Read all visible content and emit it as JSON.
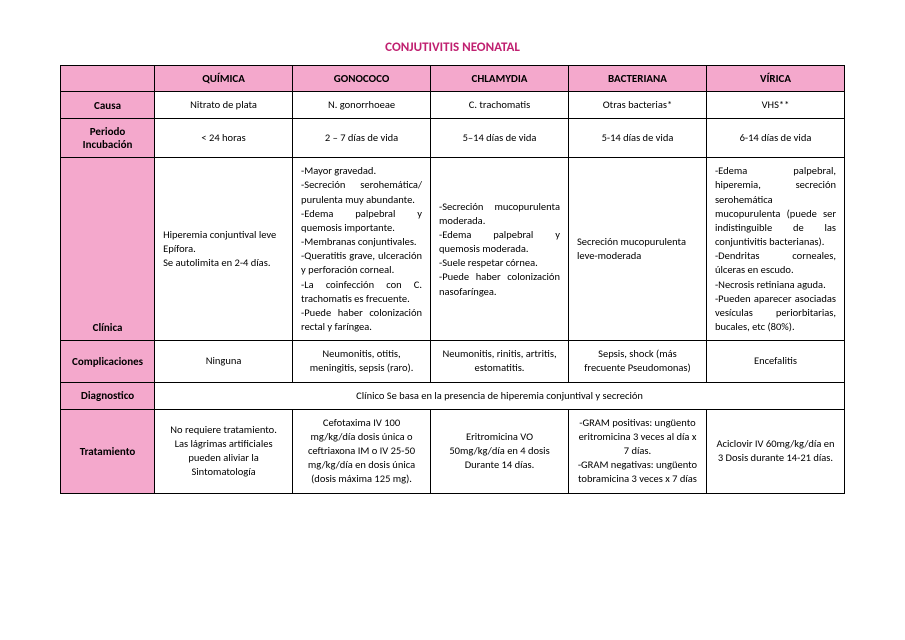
{
  "title": "CONJUTIVITIS NEONATAL",
  "columns": [
    "QUÍMICA",
    "GONOCOCO",
    "CHLAMYDIA",
    "BACTERIANA",
    "VÍRICA"
  ],
  "rows": {
    "causa": {
      "label": "Causa",
      "cells": [
        "Nitrato de plata",
        "N. gonorrhoeae",
        "C. trachomatis",
        "Otras bacterias*",
        "VHS**"
      ]
    },
    "periodo": {
      "label": "Periodo Incubación",
      "cells": [
        "< 24 horas",
        "2 – 7 días de vida",
        "5–14 días de vida",
        "5-14 días de vida",
        "6-14 días de vida"
      ]
    },
    "clinica": {
      "label": "Clínica",
      "cells": [
        "Hiperemia conjuntival leve Epífora.\nSe autolimita en 2-4 días.",
        "-Mayor gravedad.\n-Secreción serohemática/ purulenta muy abundante.\n-Edema palpebral y quemosis importante.\n-Membranas conjuntivales.\n-Queratitis grave, ulceración y perforación corneal.\n-La coinfección con C. trachomatis es frecuente.\n-Puede haber colonización rectal y faríngea.",
        "-Secreción mucopurulenta moderada.\n-Edema palpebral y quemosis moderada.\n-Suele respetar córnea.\n-Puede haber colonización nasofaríngea.",
        "Secreción mucopurulenta leve-moderada",
        "-Edema palpebral, hiperemia, secreción serohemática mucopurulenta (puede ser indistinguible de las conjuntivitis bacterianas).\n-Dendritas corneales, úlceras en escudo.\n-Necrosis retiniana aguda.\n-Pueden aparecer asociadas vesículas periorbitarias, bucales, etc (80%)."
      ]
    },
    "complicaciones": {
      "label": "Complicaciones",
      "cells": [
        "Ninguna",
        "Neumonitis, otitis, meningitis, sepsis (raro).",
        "Neumonitis, rinitis, artritis, estomatitis.",
        "Sepsis, shock (más frecuente Pseudomonas)",
        "Encefalitis"
      ]
    },
    "diagnostico": {
      "label": "Diagnostico",
      "merged": "Clínico Se basa en la presencia de hiperemia conjuntival y secreción"
    },
    "tratamiento": {
      "label": "Tratamiento",
      "cells": [
        "No requiere tratamiento. Las lágrimas artificiales pueden aliviar la Sintomatología",
        "Cefotaxima IV 100 mg/kg/día dosis única o ceftriaxona IM o IV 25-50 mg/kg/día en dosis única (dosis máxima 125 mg).",
        "Eritromicina VO 50mg/kg/día en 4 dosis Durante 14 días.",
        "-GRAM positivas: ungüento eritromicina 3 veces al día x 7 días.\n-GRAM negativas: ungüento tobramicina 3 veces x 7 días",
        "Aciclovir IV 60mg/kg/día en 3 Dosis durante 14-21 días."
      ]
    }
  }
}
